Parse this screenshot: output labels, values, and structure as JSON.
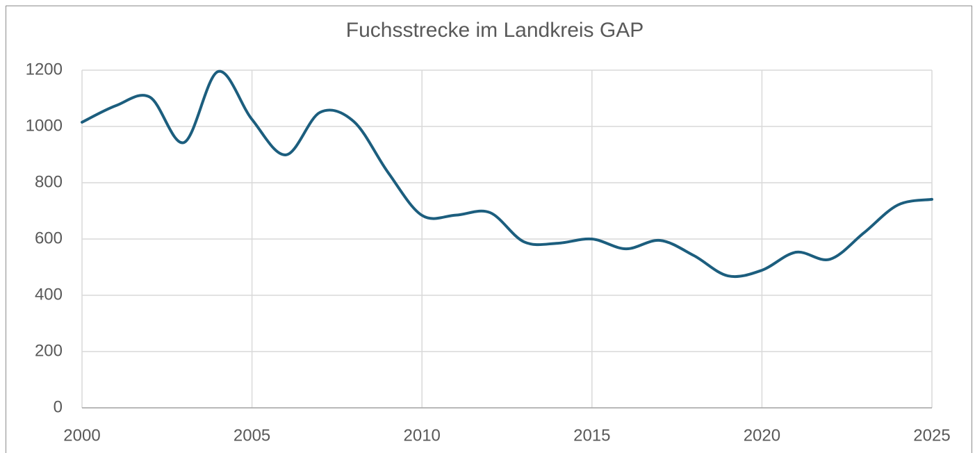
{
  "chart_data": {
    "type": "line",
    "title": "Fuchsstrecke im Landkreis GAP",
    "x": [
      2000,
      2001,
      2002,
      2003,
      2004,
      2005,
      2006,
      2007,
      2008,
      2009,
      2010,
      2011,
      2012,
      2013,
      2014,
      2015,
      2016,
      2017,
      2018,
      2019,
      2020,
      2021,
      2022,
      2023,
      2024,
      2025
    ],
    "series": [
      {
        "name": "Fuchsstrecke",
        "color": "#1c5e7e",
        "values": [
          1015,
          1074,
          1104,
          943,
          1195,
          1025,
          899,
          1050,
          1017,
          837,
          684,
          685,
          694,
          590,
          585,
          600,
          565,
          595,
          541,
          469,
          489,
          553,
          528,
          622,
          721,
          741
        ]
      }
    ],
    "xlim": [
      2000,
      2025
    ],
    "xticks": [
      2000,
      2005,
      2010,
      2015,
      2020,
      2025
    ],
    "ylim": [
      0,
      1200
    ],
    "yticks": [
      0,
      200,
      400,
      600,
      800,
      1000,
      1200
    ],
    "grid": true,
    "smooth": true
  }
}
